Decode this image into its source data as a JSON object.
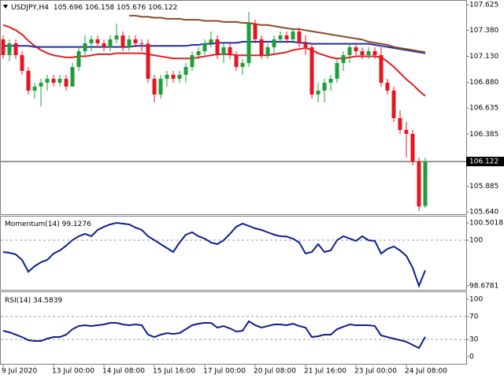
{
  "chart_data": [
    {
      "type": "candlestick",
      "title": "USDJPY,H4",
      "categories": [
        "9 Jul 2020",
        null,
        null,
        null,
        null,
        null,
        null,
        null,
        "13 Jul 00:00",
        null,
        null,
        null,
        null,
        null,
        null,
        null,
        "14 Jul 08:00",
        null,
        null,
        null,
        null,
        null,
        null,
        null,
        "15 Jul 16:00",
        null,
        null,
        null,
        null,
        null,
        null,
        null,
        "17 Jul 00:00",
        null,
        null,
        null,
        null,
        null,
        null,
        null,
        "20 Jul 08:00",
        null,
        null,
        null,
        null,
        null,
        null,
        null,
        "21 Jul 16:00",
        null,
        null,
        null,
        null,
        null,
        null,
        null,
        "23 Jul 00:00",
        null,
        null,
        null,
        null,
        null,
        null,
        null,
        "24 Jul 08:00",
        null,
        null,
        null
      ],
      "open": [
        107.293,
        107.142,
        107.255,
        107.142,
        106.991,
        106.802,
        106.84,
        106.877,
        106.915,
        106.877,
        106.915,
        106.84,
        107.028,
        107.179,
        107.255,
        107.293,
        107.255,
        107.217,
        107.293,
        107.33,
        107.217,
        107.293,
        107.255,
        107.252,
        106.915,
        106.764,
        106.915,
        106.953,
        106.915,
        106.953,
        107.028,
        107.142,
        107.179,
        107.255,
        107.293,
        107.142,
        107.217,
        107.142,
        107.028,
        107.066,
        107.444,
        107.293,
        107.142,
        107.217,
        107.293,
        107.33,
        107.293,
        107.368,
        107.255,
        107.217,
        106.764,
        106.802,
        106.877,
        106.915,
        107.066,
        107.142,
        107.217,
        107.179,
        107.142,
        107.179,
        107.142,
        106.877,
        106.802,
        106.538,
        106.425,
        106.387,
        106.123,
        105.696
      ],
      "high": [
        107.33,
        107.293,
        107.293,
        107.179,
        107.028,
        106.877,
        106.915,
        106.953,
        106.953,
        106.953,
        106.953,
        107.066,
        107.217,
        107.33,
        107.33,
        107.33,
        107.293,
        107.33,
        107.444,
        107.368,
        107.33,
        107.33,
        107.293,
        107.293,
        106.953,
        106.953,
        106.991,
        106.991,
        106.991,
        107.066,
        107.179,
        107.217,
        107.293,
        107.368,
        107.33,
        107.255,
        107.255,
        107.179,
        107.104,
        107.557,
        107.481,
        107.33,
        107.255,
        107.33,
        107.368,
        107.368,
        107.406,
        107.406,
        107.33,
        107.255,
        106.877,
        106.915,
        106.953,
        107.104,
        107.179,
        107.255,
        107.255,
        107.217,
        107.217,
        107.217,
        107.217,
        106.915,
        106.84,
        106.613,
        106.5,
        106.425,
        106.16,
        106.158
      ],
      "low": [
        107.104,
        107.081,
        107.104,
        106.953,
        106.764,
        106.726,
        106.651,
        106.802,
        106.84,
        106.84,
        106.802,
        106.84,
        106.991,
        107.142,
        107.179,
        107.217,
        107.179,
        107.179,
        107.255,
        107.179,
        107.179,
        107.217,
        107.179,
        106.877,
        106.689,
        106.726,
        106.84,
        106.877,
        106.877,
        106.877,
        106.991,
        107.104,
        107.142,
        107.217,
        107.104,
        107.066,
        107.104,
        106.991,
        106.953,
        107.028,
        107.255,
        107.104,
        107.104,
        107.142,
        107.255,
        107.255,
        107.255,
        107.217,
        107.142,
        106.726,
        106.689,
        106.689,
        106.802,
        106.877,
        106.991,
        107.066,
        107.142,
        107.104,
        107.104,
        107.104,
        106.84,
        106.764,
        106.5,
        106.387,
        106.16,
        106.085,
        105.647,
        105.676
      ],
      "close": [
        107.142,
        107.255,
        107.142,
        106.991,
        106.802,
        106.84,
        106.877,
        106.915,
        106.877,
        106.915,
        106.84,
        107.028,
        107.179,
        107.255,
        107.293,
        107.255,
        107.217,
        107.293,
        107.33,
        107.217,
        107.293,
        107.255,
        107.252,
        106.915,
        106.764,
        106.915,
        106.953,
        106.915,
        106.953,
        107.028,
        107.142,
        107.179,
        107.255,
        107.293,
        107.142,
        107.217,
        107.142,
        107.028,
        107.066,
        107.444,
        107.293,
        107.142,
        107.217,
        107.293,
        107.33,
        107.293,
        107.368,
        107.255,
        107.217,
        106.764,
        106.802,
        106.877,
        106.915,
        107.066,
        107.142,
        107.217,
        107.179,
        107.142,
        107.179,
        107.142,
        106.877,
        106.802,
        106.538,
        106.425,
        106.387,
        106.123,
        105.692,
        106.122
      ],
      "up_color": "#1e9e3a",
      "down_color": "#e8141e",
      "series": [
        {
          "color": "#e02020",
          "values": [
            107.43,
            107.41,
            107.38,
            107.34,
            107.28,
            107.23,
            107.19,
            107.16,
            107.14,
            107.13,
            107.12,
            107.12,
            107.13,
            107.13,
            107.14,
            107.15,
            107.15,
            107.15,
            107.16,
            107.16,
            107.16,
            107.16,
            107.16,
            107.15,
            107.14,
            107.13,
            107.12,
            107.11,
            107.11,
            107.11,
            107.11,
            107.12,
            107.13,
            107.14,
            107.15,
            107.15,
            107.15,
            107.14,
            107.14,
            107.14,
            107.14,
            107.14,
            107.14,
            107.15,
            107.16,
            107.17,
            107.19,
            107.2,
            107.21,
            107.19,
            107.16,
            107.14,
            107.12,
            107.11,
            107.11,
            107.12,
            107.13,
            107.13,
            107.13,
            107.13,
            107.12,
            107.08,
            107.03,
            106.97,
            106.91,
            106.86,
            106.8,
            106.75
          ]
        },
        {
          "color": "#1f2fa8",
          "values": [
            107.23,
            107.23,
            107.23,
            107.23,
            107.23,
            107.22,
            107.22,
            107.22,
            107.22,
            107.22,
            107.22,
            107.22,
            107.22,
            107.22,
            107.22,
            107.22,
            107.22,
            107.22,
            107.22,
            107.22,
            107.22,
            107.23,
            107.23,
            107.23,
            107.23,
            107.23,
            107.23,
            107.23,
            107.23,
            107.23,
            107.24,
            107.24,
            107.25,
            107.25,
            107.26,
            107.26,
            107.26,
            107.26,
            107.27,
            107.27,
            107.27,
            107.27,
            107.27,
            107.27,
            107.27,
            107.27,
            107.27,
            107.26,
            107.26,
            107.25,
            107.25,
            107.25,
            107.25,
            107.25,
            107.25,
            107.25,
            107.25,
            107.25,
            107.25,
            107.24,
            107.23,
            107.22,
            107.21,
            107.2,
            107.19,
            107.18,
            107.17,
            107.16
          ]
        },
        {
          "color": "#8b4a2b",
          "values": [
            null,
            null,
            null,
            null,
            null,
            null,
            null,
            null,
            null,
            null,
            null,
            null,
            null,
            null,
            null,
            null,
            null,
            null,
            null,
            null,
            107.52,
            107.52,
            107.51,
            107.51,
            107.5,
            107.5,
            107.49,
            107.49,
            107.49,
            107.48,
            107.48,
            107.48,
            107.47,
            107.47,
            107.47,
            107.46,
            107.46,
            107.46,
            107.45,
            107.45,
            107.44,
            107.43,
            107.43,
            107.42,
            107.41,
            107.4,
            107.39,
            107.39,
            107.38,
            107.37,
            107.36,
            107.35,
            107.34,
            107.33,
            107.32,
            107.31,
            107.3,
            107.29,
            107.27,
            107.26,
            107.25,
            107.24,
            107.22,
            107.21,
            107.2,
            107.19,
            107.18,
            107.17
          ]
        }
      ],
      "ylim": [
        105.617,
        107.655
      ],
      "yticks": [
        107.625,
        {
          "value": 107.38,
          "label": "107.380"
        },
        {
          "value": 107.13,
          "label": "107.130"
        },
        {
          "value": 106.88,
          "label": "106.880"
        },
        106.635,
        106.385,
        105.885,
        {
          "value": 105.64,
          "label": "105.640"
        }
      ],
      "price_line": true
    },
    {
      "type": "line",
      "title": "Momentum(14)",
      "color": "#0d1f8c",
      "values": [
        99.659,
        99.636,
        99.59,
        99.43,
        99.088,
        99.248,
        99.362,
        99.43,
        99.613,
        99.704,
        99.841,
        100.003,
        100.114,
        100.183,
        100.114,
        100.297,
        100.388,
        100.456,
        100.5018,
        100.479,
        100.456,
        100.365,
        100.297,
        100.114,
        100.002,
        99.886,
        99.772,
        99.659,
        99.932,
        100.16,
        100.228,
        100.114,
        100.046,
        99.932,
        99.886,
        99.998,
        100.183,
        100.388,
        100.479,
        100.411,
        100.342,
        100.297,
        100.228,
        100.16,
        100.114,
        100.105,
        100.046,
        99.932,
        99.613,
        99.659,
        99.886,
        99.659,
        99.704,
        100.001,
        100.114,
        100.046,
        99.978,
        100.114,
        99.997,
        99.978,
        99.613,
        99.749,
        99.818,
        99.704,
        99.544,
        99.202,
        98.6781,
        99.1276
      ],
      "ylim": [
        98.564,
        100.684
      ],
      "yticks": [
        100.5018,
        100,
        98.6781
      ],
      "levels": [
        100
      ]
    },
    {
      "type": "line",
      "title": "RSI(14)",
      "color": "#0d1f8c",
      "values": [
        45.2,
        42.5,
        38.4,
        34.2,
        28.8,
        27.4,
        27.4,
        31.5,
        34.2,
        34.2,
        38.4,
        47.9,
        53.4,
        54.8,
        53.4,
        54.8,
        56.2,
        58.9,
        58.9,
        56.2,
        54.8,
        56.2,
        54.8,
        38.4,
        34.2,
        38.4,
        41.1,
        39.7,
        41.1,
        47.9,
        54.8,
        57.5,
        58.9,
        58.9,
        50.7,
        53.4,
        49.3,
        43.8,
        45.2,
        61.6,
        54.8,
        50.7,
        53.4,
        56.2,
        56.2,
        54.8,
        57.5,
        53.4,
        50.7,
        34.2,
        35.6,
        38.4,
        38.4,
        47.9,
        52.1,
        56.2,
        54.8,
        54.8,
        54.8,
        53.4,
        37.0,
        34.2,
        31.5,
        28.8,
        26.0,
        20.5,
        15.1,
        34.5839
      ],
      "ylim": [
        -12.3,
        112.3
      ],
      "yticks": [
        100,
        70,
        30,
        0
      ],
      "levels": [
        70,
        30
      ]
    }
  ]
}
